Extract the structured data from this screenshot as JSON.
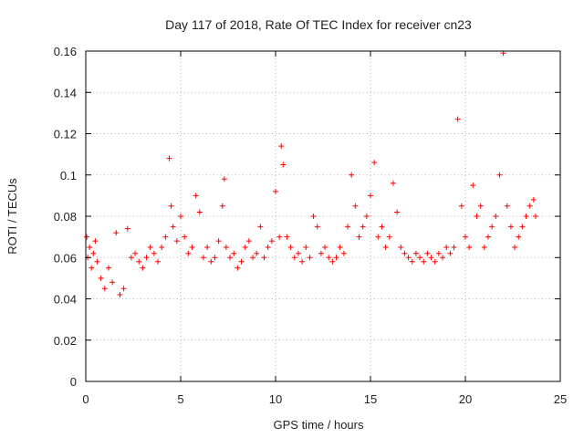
{
  "chart_data": {
    "type": "scatter",
    "title": "Day 117 of 2018, Rate Of TEC Index for receiver cn23",
    "xlabel": "GPS time / hours",
    "ylabel": "ROTI / TECUs",
    "xlim": [
      0,
      25
    ],
    "ylim": [
      0,
      0.16
    ],
    "xticks": [
      0,
      5,
      10,
      15,
      20,
      25
    ],
    "xtick_labels": [
      "0",
      "5",
      "10",
      "15",
      "20",
      "25"
    ],
    "yticks": [
      0,
      0.02,
      0.04,
      0.06,
      0.08,
      0.1,
      0.12,
      0.14,
      0.16
    ],
    "ytick_labels": [
      "0",
      "0.02",
      "0.04",
      "0.06",
      "0.08",
      "0.1",
      "0.12",
      "0.14",
      "0.16"
    ],
    "grid": true,
    "marker": "plus",
    "color": "#ff0000",
    "series": [
      {
        "name": "ROTI",
        "x": [
          0.05,
          0.1,
          0.2,
          0.3,
          0.4,
          0.5,
          0.6,
          0.8,
          1.0,
          1.2,
          1.4,
          1.6,
          1.8,
          2.0,
          2.2,
          2.4,
          2.6,
          2.8,
          3.0,
          3.2,
          3.4,
          3.6,
          3.8,
          4.0,
          4.2,
          4.4,
          4.5,
          4.6,
          4.8,
          5.0,
          5.2,
          5.4,
          5.6,
          5.8,
          6.0,
          6.2,
          6.4,
          6.6,
          6.8,
          7.0,
          7.2,
          7.3,
          7.4,
          7.6,
          7.8,
          8.0,
          8.2,
          8.4,
          8.6,
          8.8,
          9.0,
          9.2,
          9.4,
          9.6,
          9.8,
          10.0,
          10.2,
          10.3,
          10.4,
          10.6,
          10.8,
          11.0,
          11.2,
          11.4,
          11.6,
          11.8,
          12.0,
          12.2,
          12.4,
          12.6,
          12.8,
          13.0,
          13.2,
          13.4,
          13.6,
          13.8,
          14.0,
          14.2,
          14.4,
          14.6,
          14.8,
          15.0,
          15.2,
          15.4,
          15.6,
          15.8,
          16.0,
          16.2,
          16.4,
          16.6,
          16.8,
          17.0,
          17.2,
          17.4,
          17.6,
          17.8,
          18.0,
          18.2,
          18.4,
          18.6,
          18.8,
          19.0,
          19.2,
          19.4,
          19.6,
          19.8,
          20.0,
          20.2,
          20.4,
          20.6,
          20.8,
          21.0,
          21.2,
          21.4,
          21.6,
          21.8,
          22.0,
          22.2,
          22.4,
          22.6,
          22.8,
          23.0,
          23.2,
          23.4,
          23.6,
          23.7
        ],
        "y": [
          0.07,
          0.06,
          0.065,
          0.055,
          0.062,
          0.068,
          0.058,
          0.05,
          0.045,
          0.055,
          0.048,
          0.072,
          0.042,
          0.045,
          0.074,
          0.06,
          0.062,
          0.058,
          0.055,
          0.06,
          0.065,
          0.062,
          0.058,
          0.065,
          0.07,
          0.108,
          0.085,
          0.075,
          0.068,
          0.08,
          0.07,
          0.062,
          0.065,
          0.09,
          0.082,
          0.06,
          0.065,
          0.058,
          0.06,
          0.068,
          0.085,
          0.098,
          0.065,
          0.06,
          0.062,
          0.055,
          0.058,
          0.065,
          0.068,
          0.06,
          0.062,
          0.075,
          0.06,
          0.065,
          0.068,
          0.092,
          0.07,
          0.114,
          0.105,
          0.07,
          0.065,
          0.06,
          0.062,
          0.058,
          0.065,
          0.06,
          0.08,
          0.075,
          0.062,
          0.065,
          0.06,
          0.058,
          0.06,
          0.065,
          0.062,
          0.075,
          0.1,
          0.085,
          0.07,
          0.075,
          0.08,
          0.09,
          0.106,
          0.07,
          0.075,
          0.065,
          0.07,
          0.096,
          0.082,
          0.065,
          0.062,
          0.06,
          0.058,
          0.062,
          0.06,
          0.058,
          0.062,
          0.06,
          0.058,
          0.062,
          0.06,
          0.065,
          0.062,
          0.065,
          0.127,
          0.085,
          0.07,
          0.065,
          0.095,
          0.08,
          0.085,
          0.065,
          0.07,
          0.075,
          0.08,
          0.1,
          0.159,
          0.085,
          0.075,
          0.065,
          0.07,
          0.075,
          0.08,
          0.085,
          0.088,
          0.08
        ]
      }
    ]
  }
}
